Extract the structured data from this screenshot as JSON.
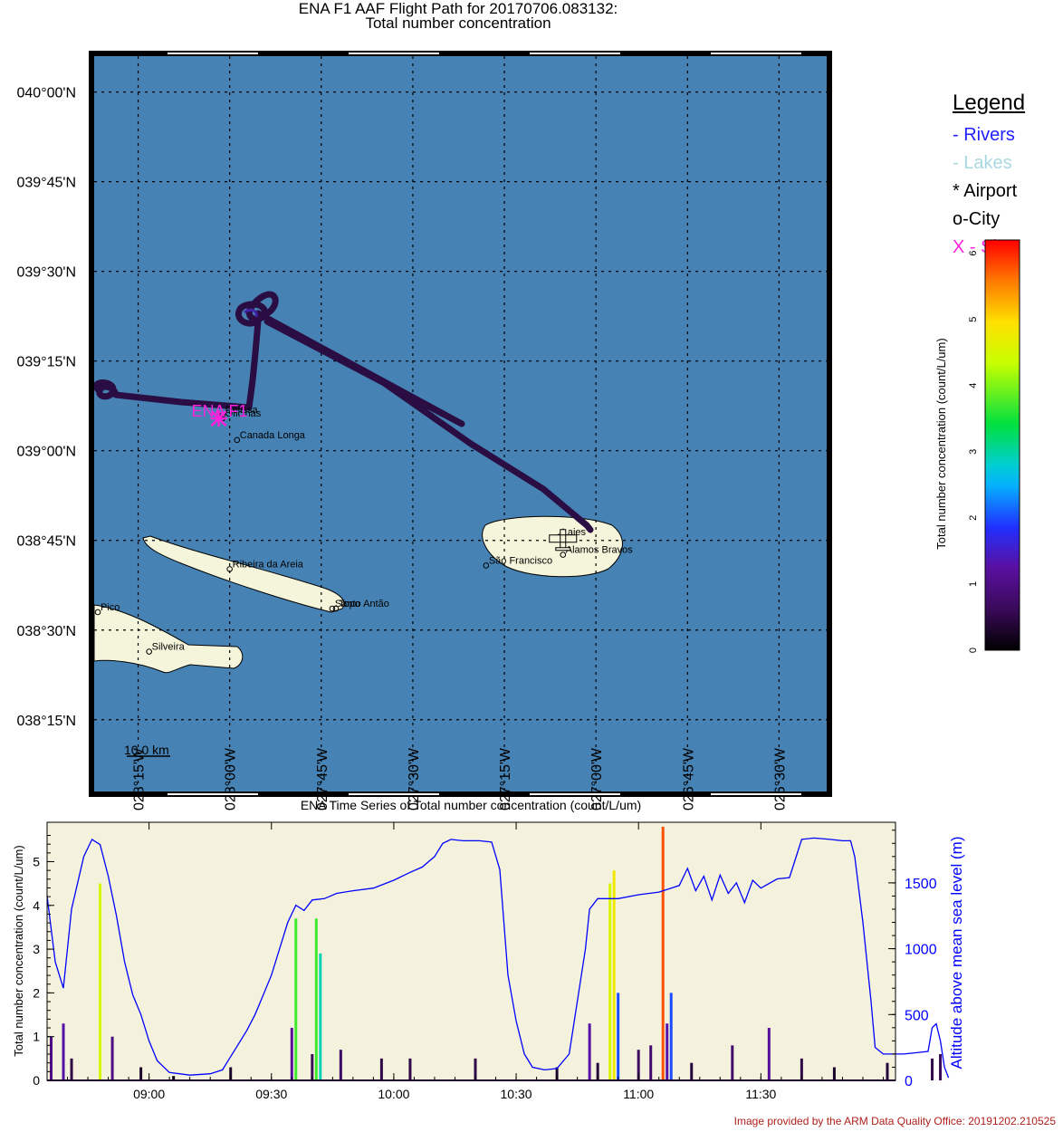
{
  "title_line1": "ENA F1 AAF Flight Path for 20170706.083132:",
  "title_line2": "Total number concentration",
  "legend": {
    "title": "Legend",
    "items": [
      {
        "label": "- Rivers",
        "color": "#1f1fff"
      },
      {
        "label": "- Lakes",
        "color": "#a9d8e0"
      },
      {
        "label": "* Airport",
        "color": "#000000"
      },
      {
        "label": "o-City",
        "color": "#000000"
      },
      {
        "label": "X - Site",
        "color": "#ff22dd"
      }
    ]
  },
  "credit": "Image provided by the ARM Data Quality Office: 20191202.210525",
  "colorbar": {
    "label": "Total number concentration  (count/L/um)",
    "ticks": [
      "0",
      "1",
      "2",
      "3",
      "4",
      "5",
      "6"
    ],
    "range": [
      0,
      6.2
    ]
  },
  "chart_data": [
    {
      "type": "map",
      "lat_ticks": [
        "040°00'N",
        "039°45'N",
        "039°30'N",
        "039°15'N",
        "039°00'N",
        "038°45'N",
        "038°30'N",
        "038°15'N"
      ],
      "lon_ticks": [
        "028°15'W",
        "028°00'W",
        "027°45'W",
        "027°30'W",
        "027°15'W",
        "027°00'W",
        "026°45'W",
        "026°30'W"
      ],
      "lat_range": [
        38.05,
        40.1
      ],
      "lon_range": [
        -28.37,
        -26.37
      ],
      "scale_bar": "10.0 km",
      "site_label": "ENA F1",
      "ocean_color": "#4682b4",
      "land_color": "#f5f5dc",
      "cities": [
        {
          "name": "Canada Longa",
          "lon": -27.98,
          "lat": 39.03
        },
        {
          "name": "Dolissa",
          "lon": -28.02,
          "lat": 39.1
        },
        {
          "name": "Oficinas",
          "lon": -28.02,
          "lat": 39.09
        },
        {
          "name": "Lajes",
          "lon": -27.1,
          "lat": 38.76
        },
        {
          "name": "Alamos Bravos",
          "lon": -27.09,
          "lat": 38.71
        },
        {
          "name": "São Francisco",
          "lon": -27.3,
          "lat": 38.68
        },
        {
          "name": "Ribeira da Areia",
          "lon": -28.0,
          "lat": 38.67
        },
        {
          "name": "Santo Antão",
          "lon": -27.72,
          "lat": 38.56
        },
        {
          "name": "Topo",
          "lon": -27.71,
          "lat": 38.56
        },
        {
          "name": "Pico",
          "lon": -28.36,
          "lat": 38.55
        },
        {
          "name": "Silveira",
          "lon": -28.22,
          "lat": 38.44
        }
      ],
      "airport": {
        "lon": -27.09,
        "lat": 38.755
      },
      "site": {
        "lon": -28.03,
        "lat": 39.09
      }
    },
    {
      "type": "line",
      "title": "ENA Time Series of Total number concentration (count/L/um)",
      "xlabel": "",
      "ylabel": "Total number concentration (count/L/um)",
      "y2label": "Altitude above mean sea level (m)",
      "x_ticks": [
        "09:00",
        "09:30",
        "10:00",
        "10:30",
        "11:00",
        "11:30"
      ],
      "y_ticks": [
        "0",
        "1",
        "2",
        "3",
        "4",
        "5"
      ],
      "y2_ticks": [
        "0",
        "500",
        "1000",
        "1500"
      ],
      "x_range_minutes": [
        515,
        723
      ],
      "ylim": [
        0,
        5.9
      ],
      "y2lim": [
        0,
        1960
      ],
      "altitude": [
        [
          515,
          1400
        ],
        [
          517,
          900
        ],
        [
          519,
          700
        ],
        [
          521,
          1300
        ],
        [
          524,
          1700
        ],
        [
          526,
          1830
        ],
        [
          528,
          1790
        ],
        [
          530,
          1550
        ],
        [
          532,
          1250
        ],
        [
          534,
          900
        ],
        [
          536,
          650
        ],
        [
          538,
          500
        ],
        [
          540,
          300
        ],
        [
          542,
          150
        ],
        [
          545,
          60
        ],
        [
          550,
          40
        ],
        [
          555,
          50
        ],
        [
          558,
          80
        ],
        [
          560,
          180
        ],
        [
          562,
          280
        ],
        [
          564,
          380
        ],
        [
          566,
          500
        ],
        [
          568,
          650
        ],
        [
          570,
          800
        ],
        [
          572,
          1000
        ],
        [
          574,
          1200
        ],
        [
          576,
          1330
        ],
        [
          578,
          1290
        ],
        [
          580,
          1370
        ],
        [
          583,
          1380
        ],
        [
          586,
          1420
        ],
        [
          590,
          1440
        ],
        [
          595,
          1460
        ],
        [
          600,
          1520
        ],
        [
          604,
          1580
        ],
        [
          607,
          1620
        ],
        [
          610,
          1700
        ],
        [
          612,
          1800
        ],
        [
          614,
          1830
        ],
        [
          617,
          1820
        ],
        [
          621,
          1820
        ],
        [
          624,
          1810
        ],
        [
          626,
          1600
        ],
        [
          627,
          1200
        ],
        [
          628,
          800
        ],
        [
          630,
          450
        ],
        [
          632,
          200
        ],
        [
          634,
          100
        ],
        [
          637,
          80
        ],
        [
          640,
          90
        ],
        [
          643,
          200
        ],
        [
          645,
          600
        ],
        [
          647,
          1000
        ],
        [
          648,
          1300
        ],
        [
          650,
          1380
        ],
        [
          655,
          1380
        ],
        [
          660,
          1410
        ],
        [
          665,
          1430
        ],
        [
          668,
          1460
        ],
        [
          670,
          1480
        ],
        [
          672,
          1610
        ],
        [
          674,
          1440
        ],
        [
          676,
          1550
        ],
        [
          678,
          1370
        ],
        [
          680,
          1560
        ],
        [
          682,
          1420
        ],
        [
          684,
          1500
        ],
        [
          686,
          1350
        ],
        [
          688,
          1520
        ],
        [
          690,
          1460
        ],
        [
          694,
          1530
        ],
        [
          697,
          1540
        ],
        [
          700,
          1830
        ],
        [
          703,
          1840
        ],
        [
          707,
          1830
        ],
        [
          710,
          1820
        ],
        [
          712,
          1820
        ],
        [
          713,
          1700
        ],
        [
          715,
          1200
        ],
        [
          717,
          600
        ],
        [
          718,
          250
        ],
        [
          720,
          200
        ],
        [
          722,
          200
        ],
        [
          725,
          200
        ],
        [
          728,
          210
        ],
        [
          731,
          220
        ],
        [
          732,
          400
        ],
        [
          733,
          430
        ],
        [
          734,
          300
        ],
        [
          735,
          100
        ],
        [
          736,
          20
        ]
      ],
      "concentration_spikes": [
        {
          "t": 516,
          "v": 1.0
        },
        {
          "t": 519,
          "v": 1.3
        },
        {
          "t": 521,
          "v": 0.5
        },
        {
          "t": 528,
          "v": 4.5
        },
        {
          "t": 531,
          "v": 1.0
        },
        {
          "t": 538,
          "v": 0.3
        },
        {
          "t": 546,
          "v": 0.1
        },
        {
          "t": 560,
          "v": 0.3
        },
        {
          "t": 575,
          "v": 1.2
        },
        {
          "t": 576,
          "v": 3.7
        },
        {
          "t": 580,
          "v": 0.6
        },
        {
          "t": 581,
          "v": 3.7
        },
        {
          "t": 582,
          "v": 2.9
        },
        {
          "t": 587,
          "v": 0.7
        },
        {
          "t": 597,
          "v": 0.5
        },
        {
          "t": 604,
          "v": 0.5
        },
        {
          "t": 620,
          "v": 0.5
        },
        {
          "t": 640,
          "v": 0.3
        },
        {
          "t": 648,
          "v": 1.3
        },
        {
          "t": 650,
          "v": 0.4
        },
        {
          "t": 653,
          "v": 4.5
        },
        {
          "t": 654,
          "v": 4.8
        },
        {
          "t": 655,
          "v": 2.0
        },
        {
          "t": 660,
          "v": 0.7
        },
        {
          "t": 663,
          "v": 0.8
        },
        {
          "t": 666,
          "v": 5.8
        },
        {
          "t": 667,
          "v": 1.3
        },
        {
          "t": 668,
          "v": 2.0
        },
        {
          "t": 673,
          "v": 0.4
        },
        {
          "t": 683,
          "v": 0.8
        },
        {
          "t": 692,
          "v": 1.2
        },
        {
          "t": 700,
          "v": 0.5
        },
        {
          "t": 708,
          "v": 0.3
        },
        {
          "t": 721,
          "v": 0.4
        },
        {
          "t": 732,
          "v": 0.5
        },
        {
          "t": 734,
          "v": 0.6
        }
      ]
    }
  ]
}
